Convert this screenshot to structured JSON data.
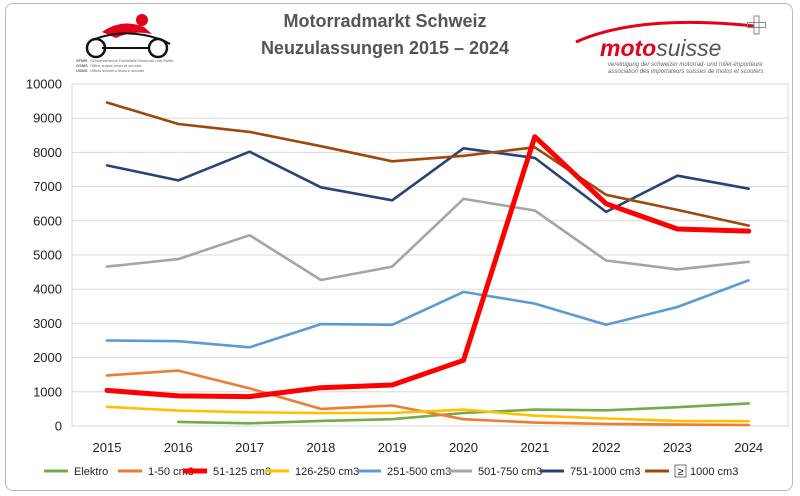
{
  "header": {
    "title_line1": "Motorradmarkt Schweiz",
    "title_line2": "Neuzulassungen 2015 – 2024"
  },
  "logo_left": {
    "acronym_lines": [
      "SFMR",
      "GSMS",
      "USMS"
    ],
    "caption_lines": [
      "Schweizerische Fachstelle Motorrad und Roller",
      "Office suisse moto et scooter",
      "Ufficio svizzero moto e scooter"
    ]
  },
  "logo_right": {
    "word_moto": "moto",
    "word_suisse": "suisse",
    "tagline_lines": [
      "vereinigung der schweizer motorrad- und roller-importeure",
      "association des importateurs suisses de motos et scooters"
    ],
    "accent_color": "#e3001b"
  },
  "chart_data": {
    "type": "line",
    "title": "Motorradmarkt Schweiz Neuzulassungen 2015 – 2024",
    "x": [
      2015,
      2016,
      2017,
      2018,
      2019,
      2020,
      2021,
      2022,
      2023,
      2024
    ],
    "ylim": [
      0,
      10000
    ],
    "yticks": [
      0,
      1000,
      2000,
      3000,
      4000,
      5000,
      6000,
      7000,
      8000,
      9000,
      10000
    ],
    "grid": true,
    "legend_position": "bottom",
    "series": [
      {
        "name": "Elektro",
        "color": "#70ad47",
        "emphasis": false,
        "values": [
          null,
          120,
          80,
          150,
          200,
          380,
          480,
          460,
          550,
          660
        ]
      },
      {
        "name": "1-50 cm3",
        "color": "#ed7d31",
        "emphasis": false,
        "values": [
          1480,
          1620,
          1100,
          500,
          600,
          200,
          100,
          60,
          40,
          30
        ]
      },
      {
        "name": "51-125 cm3",
        "color": "#ff0000",
        "emphasis": true,
        "values": [
          1040,
          880,
          860,
          1120,
          1200,
          1920,
          8460,
          6500,
          5760,
          5700
        ]
      },
      {
        "name": "126-250 cm3",
        "color": "#ffc000",
        "emphasis": false,
        "values": [
          560,
          450,
          400,
          380,
          380,
          480,
          300,
          220,
          150,
          140
        ]
      },
      {
        "name": "251-500 cm3",
        "color": "#5b9bd5",
        "emphasis": false,
        "values": [
          2500,
          2480,
          2300,
          2980,
          2960,
          3920,
          3580,
          2960,
          3480,
          4260
        ]
      },
      {
        "name": "501-750 cm3",
        "color": "#a5a5a5",
        "emphasis": false,
        "values": [
          4660,
          4880,
          5580,
          4270,
          4660,
          6640,
          6300,
          4840,
          4580,
          4800
        ]
      },
      {
        "name": "751-1000 cm3",
        "color": "#264478",
        "emphasis": false,
        "values": [
          7620,
          7180,
          8020,
          6980,
          6600,
          8120,
          7840,
          6260,
          7320,
          6940
        ]
      },
      {
        "name": "1000 cm3",
        "symbol": "≥",
        "color": "#9e480e",
        "emphasis": false,
        "values": [
          9460,
          8830,
          8600,
          8180,
          7740,
          7900,
          8150,
          6760,
          6320,
          5860
        ]
      }
    ]
  }
}
